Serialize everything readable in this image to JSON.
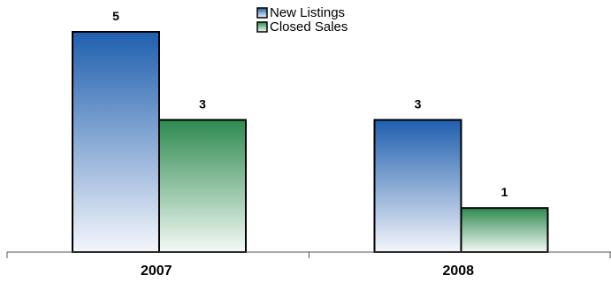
{
  "chart_data": {
    "type": "bar",
    "categories": [
      "2007",
      "2008"
    ],
    "series": [
      {
        "name": "New Listings",
        "values": [
          5,
          3
        ],
        "color": "#1f5fae",
        "fill_end": "#f4f6fb"
      },
      {
        "name": "Closed Sales",
        "values": [
          3,
          1
        ],
        "color": "#2e8a4f",
        "fill_end": "#f4faf6"
      }
    ],
    "ylim": [
      0,
      5
    ],
    "grid": false,
    "legend_position": "top-center",
    "data_labels": true
  }
}
